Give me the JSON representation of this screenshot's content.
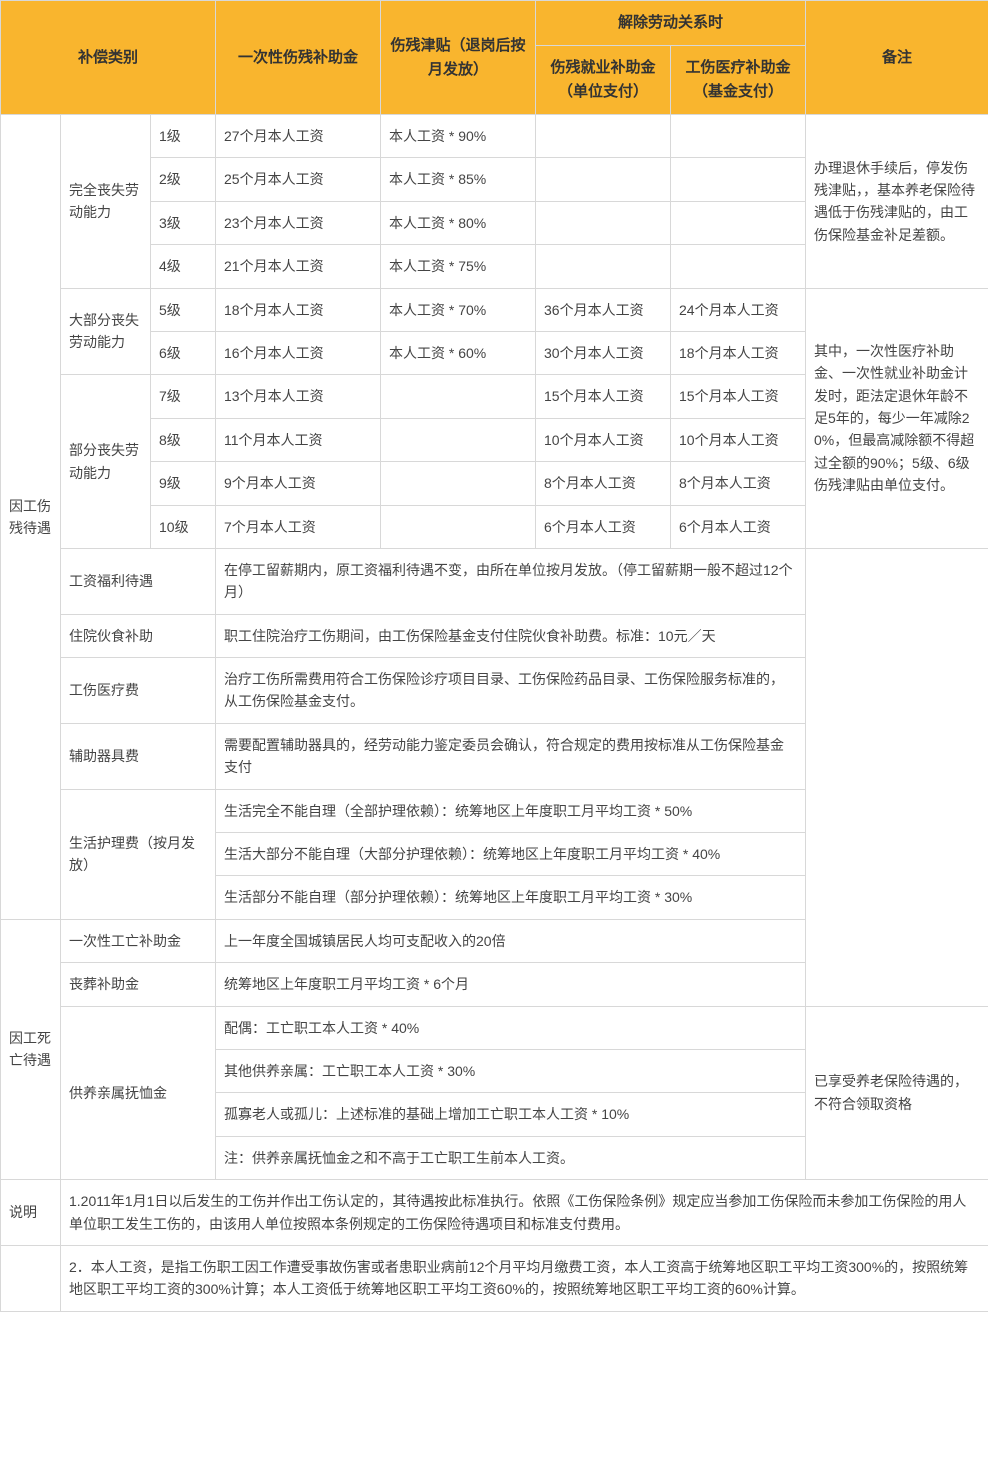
{
  "header": {
    "category": "补偿类别",
    "lump_sum": "一次性伤残补助金",
    "allowance": "伤残津贴（退岗后按月发放）",
    "termination": "解除劳动关系时",
    "emp_subsidy": "伤残就业补助金（单位支付）",
    "med_subsidy": "工伤医疗补助金（基金支付）",
    "remark": "备注"
  },
  "injury": {
    "title": "因工伤残待遇",
    "full_loss": "完全丧失劳动能力",
    "most_loss": "大部分丧失劳动能力",
    "part_loss": "部分丧失劳动能力",
    "grades": {
      "g1": {
        "lvl": "1级",
        "lump": "27个月本人工资",
        "allow": "本人工资 * 90%"
      },
      "g2": {
        "lvl": "2级",
        "lump": "25个月本人工资",
        "allow": "本人工资 * 85%"
      },
      "g3": {
        "lvl": "3级",
        "lump": "23个月本人工资",
        "allow": "本人工资 * 80%"
      },
      "g4": {
        "lvl": "4级",
        "lump": "21个月本人工资",
        "allow": "本人工资 * 75%"
      },
      "g5": {
        "lvl": "5级",
        "lump": "18个月本人工资",
        "allow": "本人工资 * 70%",
        "emp": "36个月本人工资",
        "med": "24个月本人工资"
      },
      "g6": {
        "lvl": "6级",
        "lump": "16个月本人工资",
        "allow": "本人工资 * 60%",
        "emp": "30个月本人工资",
        "med": "18个月本人工资"
      },
      "g7": {
        "lvl": "7级",
        "lump": "13个月本人工资",
        "emp": "15个月本人工资",
        "med": "15个月本人工资"
      },
      "g8": {
        "lvl": "8级",
        "lump": "11个月本人工资",
        "emp": "10个月本人工资",
        "med": "10个月本人工资"
      },
      "g9": {
        "lvl": "9级",
        "lump": "9个月本人工资",
        "emp": "8个月本人工资",
        "med": "8个月本人工资"
      },
      "g10": {
        "lvl": "10级",
        "lump": "7个月本人工资",
        "emp": "6个月本人工资",
        "med": "6个月本人工资"
      }
    },
    "remark1": "办理退休手续后，停发伤残津贴，，基本养老保险待遇低于伤残津贴的，由工伤保险基金补足差额。",
    "remark2": "其中，一次性医疗补助金、一次性就业补助金计发时，距法定退休年龄不足5年的，每少一年减除20%，但最高减除额不得超过全额的90%；5级、6级伤残津贴由单位支付。",
    "salary_benefit": {
      "label": "工资福利待遇",
      "text": "在停工留薪期内，原工资福利待遇不变，由所在单位按月发放。（停工留薪期一般不超过12个月）"
    },
    "hospital_food": {
      "label": "住院伙食补助",
      "text": "职工住院治疗工伤期间，由工伤保险基金支付住院伙食补助费。标准：10元／天"
    },
    "medical_fee": {
      "label": "工伤医疗费",
      "text": "治疗工伤所需费用符合工伤保险诊疗项目目录、工伤保险药品目录、工伤保险服务标准的，从工伤保险基金支付。"
    },
    "assist_device": {
      "label": "辅助器具费",
      "text": "需要配置辅助器具的，经劳动能力鉴定委员会确认，符合规定的费用按标准从工伤保险基金支付"
    },
    "nursing": {
      "label": "生活护理费（按月发放）",
      "full": "生活完全不能自理（全部护理依赖）：统筹地区上年度职工月平均工资 * 50%",
      "most": "生活大部分不能自理（大部分护理依赖）：统筹地区上年度职工月平均工资 * 40%",
      "part": "生活部分不能自理（部分护理依赖）：统筹地区上年度职工月平均工资 * 30%"
    }
  },
  "death": {
    "title": "因工死亡待遇",
    "lump": {
      "label": "一次性工亡补助金",
      "text": "上一年度全国城镇居民人均可支配收入的20倍"
    },
    "funeral": {
      "label": "丧葬补助金",
      "text": "统筹地区上年度职工月平均工资 * 6个月"
    },
    "dependent": {
      "label": "供养亲属抚恤金",
      "spouse": "配偶：工亡职工本人工资 * 40%",
      "other": "其他供养亲属：工亡职工本人工资 * 30%",
      "lonely": "孤寡老人或孤儿：上述标准的基础上增加工亡职工本人工资 * 10%",
      "note": "注：供养亲属抚恤金之和不高于工亡职工生前本人工资。"
    },
    "remark": "已享受养老保险待遇的，不符合领取资格"
  },
  "notes": {
    "label": "说明",
    "n1": "1.2011年1月1日以后发生的工伤并作出工伤认定的，其待遇按此标准执行。依照《工伤保险条例》规定应当参加工伤保险而未参加工伤保险的用人单位职工发生工伤的，由该用人单位按照本条例规定的工伤保险待遇项目和标准支付费用。",
    "n2": "2．本人工资，是指工伤职工因工作遭受事故伤害或者患职业病前12个月平均月缴费工资，本人工资高于统筹地区职工平均工资300%的，按照统筹地区职工平均工资的300%计算；本人工资低于统筹地区职工平均工资60%的，按照统筹地区职工平均工资的60%计算。"
  },
  "style": {
    "header_bg": "#f9b52e",
    "border": "#d8d8d8",
    "text": "#444444",
    "font_family": "Microsoft YaHei",
    "base_fontsize": 14
  }
}
